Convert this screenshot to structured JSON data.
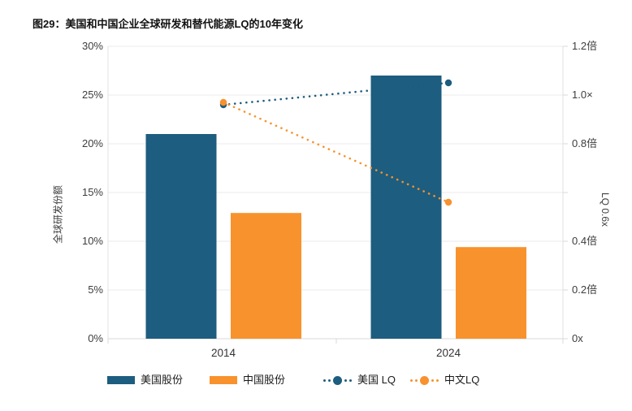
{
  "title": "图29：美国和中国企业全球研发和替代能源LQ的10年变化",
  "axes": {
    "left_title": "全球研发份额",
    "right_title_rotated": "LQ 0.6x",
    "left_ticks": [
      "30%",
      "25%",
      "20%",
      "15%",
      "10%",
      "5%",
      "0%"
    ],
    "right_ticks": [
      "1.2倍",
      "1.0×",
      "0.8倍",
      "0.4倍",
      "0.2倍",
      "0x"
    ]
  },
  "colors": {
    "us": "#1d5d7f",
    "china": "#f8922d",
    "grid": "#ebebeb",
    "axis": "#d8d8d8",
    "border": "#e2e2e2"
  },
  "chart_data": {
    "type": "bar",
    "subtype": "grouped bars with dual-axis dotted LQ lines",
    "title": "图29：美国和中国企业全球研发和替代能源LQ的10年变化",
    "categories": [
      "2014",
      "2024"
    ],
    "series": [
      {
        "name": "美国股份",
        "type": "bar",
        "axis": "left",
        "color": "#1d5d7f",
        "values": [
          21,
          27
        ]
      },
      {
        "name": "中国股份",
        "type": "bar",
        "axis": "left",
        "color": "#f8922d",
        "values": [
          12.9,
          9.4
        ]
      },
      {
        "name": "美国 LQ",
        "type": "line",
        "axis": "right",
        "color": "#1d5d7f",
        "style": "dotted",
        "values": [
          0.96,
          1.05
        ]
      },
      {
        "name": "中文LQ",
        "type": "line",
        "axis": "right",
        "color": "#f8922d",
        "style": "dotted",
        "values": [
          0.97,
          0.56
        ]
      }
    ],
    "ylabel_left": "全球研发份额",
    "ylabel_right": "LQ 0.6x",
    "ylim_left": [
      0,
      30
    ],
    "ylim_right": [
      0,
      1.2
    ],
    "ytick_step_left": 5,
    "ytick_step_right": 0.2,
    "grid": true,
    "legend_position": "bottom"
  }
}
